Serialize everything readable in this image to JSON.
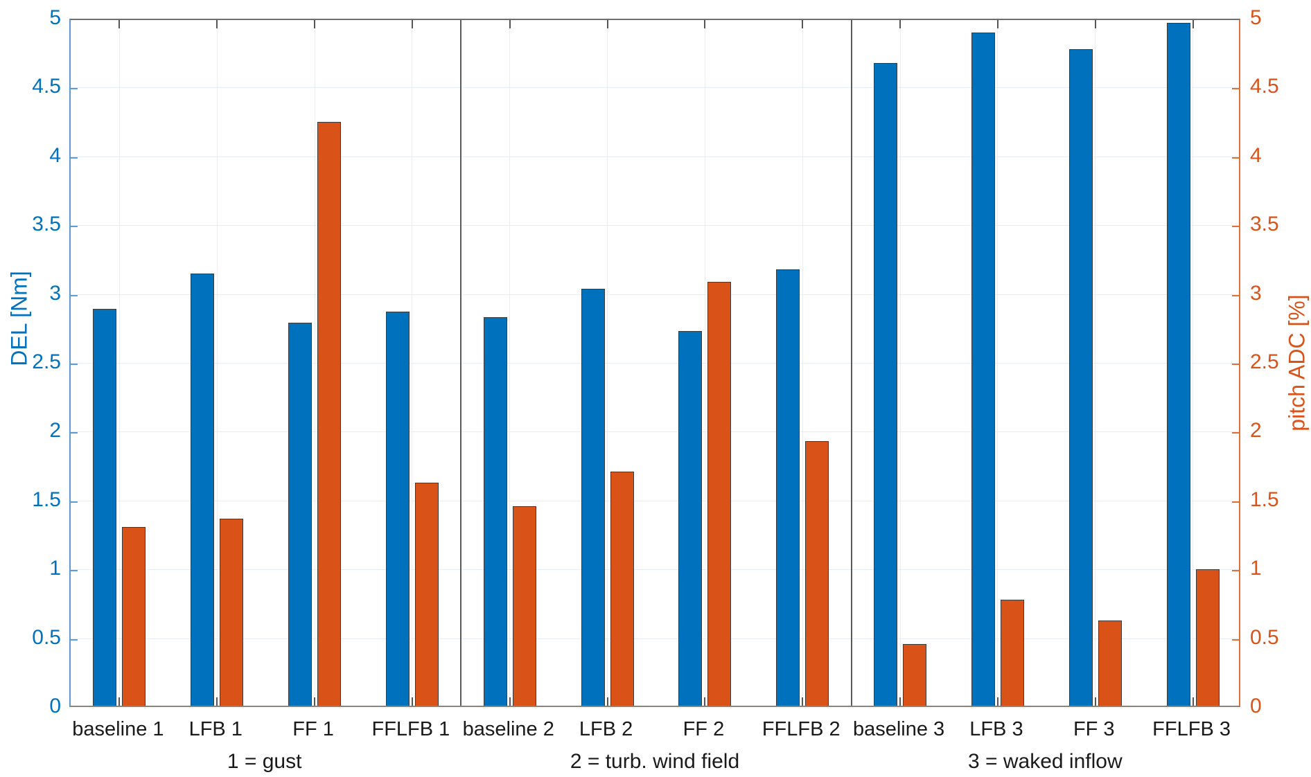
{
  "chart_data": {
    "type": "bar",
    "title": "",
    "categories": [
      "baseline 1",
      "LFB 1",
      "FF 1",
      "FFLFB 1",
      "baseline 2",
      "LFB 2",
      "FF 2",
      "FFLFB 2",
      "baseline 3",
      "LFB 3",
      "FF 3",
      "FFLFB 3"
    ],
    "groups": [
      {
        "label": "1 = gust",
        "category_indices": [
          0,
          1,
          2,
          3
        ]
      },
      {
        "label": "2 = turb. wind field",
        "category_indices": [
          4,
          5,
          6,
          7
        ]
      },
      {
        "label": "3 = waked inflow",
        "category_indices": [
          8,
          9,
          10,
          11
        ]
      }
    ],
    "series": [
      {
        "name": "DEL",
        "axis": "left",
        "color": "#0072BD",
        "values": [
          2.88,
          3.14,
          2.78,
          2.86,
          2.82,
          3.03,
          2.72,
          3.17,
          4.67,
          4.89,
          4.77,
          4.96
        ]
      },
      {
        "name": "pitch ADC",
        "axis": "right",
        "color": "#D95319",
        "values": [
          1.3,
          1.36,
          4.24,
          1.62,
          1.45,
          1.7,
          3.08,
          1.92,
          0.45,
          0.77,
          0.62,
          0.99
        ]
      }
    ],
    "left_axis": {
      "label": "DEL [Nm]",
      "min": 0,
      "max": 5,
      "ticks": [
        0,
        0.5,
        1,
        1.5,
        2,
        2.5,
        3,
        3.5,
        4,
        4.5,
        5
      ],
      "color": "#0072BD"
    },
    "right_axis": {
      "label": "pitch ADC [%]",
      "min": 0,
      "max": 5,
      "ticks": [
        0,
        0.5,
        1,
        1.5,
        2,
        2.5,
        3,
        3.5,
        4,
        4.5,
        5
      ],
      "color": "#D95319"
    },
    "grid": true,
    "legend_position": "none"
  },
  "colors": {
    "bar_blue": "#0072BD",
    "bar_orange": "#D95319",
    "grid_horizontal": "#e5edf8",
    "grid_vertical": "#ededed",
    "group_divider": "#5a5a5a",
    "tick_label_left": "#0072BD",
    "tick_label_right": "#D95319",
    "category_label": "#1a1a1a"
  }
}
